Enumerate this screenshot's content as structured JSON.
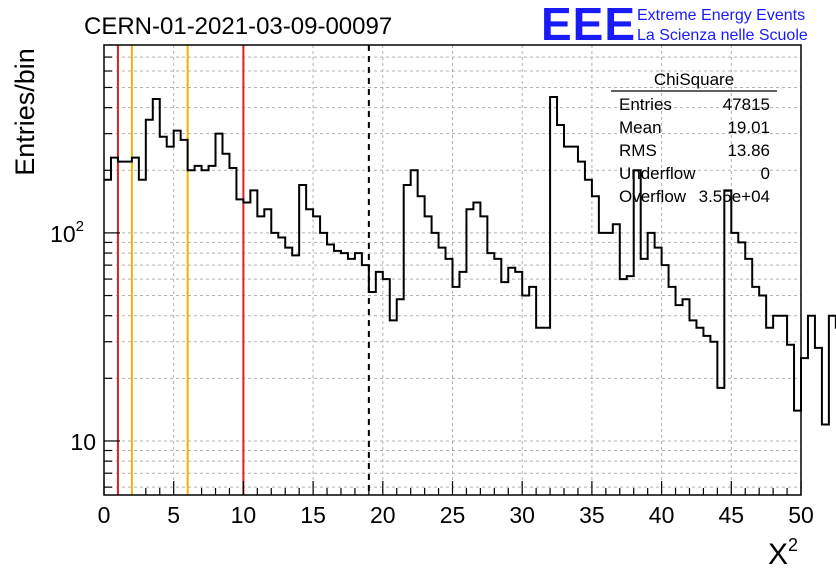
{
  "chart_data": {
    "type": "histogram",
    "title": "CERN-01-2021-03-09-00097",
    "xlabel": "X",
    "xlabel_sup": "2",
    "ylabel": "Entries/bin",
    "xlim": [
      0,
      50
    ],
    "ylim": [
      5.5,
      800
    ],
    "yscale": "log",
    "grid": true,
    "bin_width": 0.5,
    "x_ticks": [
      0,
      5,
      10,
      15,
      20,
      25,
      30,
      35,
      40,
      45,
      50
    ],
    "y_ticks": [
      {
        "value": 10,
        "label": "10",
        "exp": ""
      },
      {
        "value": 100,
        "label": "10",
        "exp": "2"
      }
    ],
    "values": [
      180,
      230,
      220,
      220,
      230,
      180,
      350,
      440,
      290,
      260,
      310,
      280,
      200,
      210,
      200,
      210,
      300,
      240,
      205,
      145,
      140,
      160,
      120,
      130,
      100,
      95,
      85,
      78,
      170,
      130,
      120,
      100,
      88,
      82,
      80,
      75,
      80,
      70,
      52,
      65,
      60,
      38,
      48,
      170,
      200,
      150,
      120,
      100,
      85,
      75,
      55,
      65,
      130,
      140,
      120,
      80,
      75,
      58,
      68,
      65,
      50,
      55,
      35,
      35,
      450,
      330,
      260,
      260,
      220,
      180,
      150,
      100,
      100,
      110,
      60,
      62,
      200,
      75,
      100,
      85,
      70,
      55,
      45,
      48,
      38,
      35,
      32,
      30,
      18,
      160,
      100,
      90,
      75,
      55,
      50,
      35,
      40,
      40,
      29,
      14,
      25,
      40,
      28,
      12,
      40,
      35
    ],
    "vertical_lines": [
      {
        "x": 1,
        "color": "#e02020",
        "style": "solid"
      },
      {
        "x": 2,
        "color": "#f0b400",
        "style": "solid"
      },
      {
        "x": 6,
        "color": "#f0b400",
        "style": "solid"
      },
      {
        "x": 10,
        "color": "#e02020",
        "style": "solid"
      },
      {
        "x": 19,
        "color": "#000000",
        "style": "dashed"
      }
    ],
    "stats_box": {
      "name": "ChiSquare",
      "rows": [
        {
          "label": "Entries",
          "value": "47815"
        },
        {
          "label": "Mean",
          "value": "19.01"
        },
        {
          "label": "RMS",
          "value": "13.86"
        },
        {
          "label": "Underflow",
          "value": "0"
        },
        {
          "label": "Overflow",
          "value": "3.55e+04"
        }
      ]
    }
  },
  "logo": {
    "text": "EEE",
    "line1": "Extreme Energy Events",
    "line2": "La Scienza nelle Scuole",
    "color": "#1a1aff"
  }
}
